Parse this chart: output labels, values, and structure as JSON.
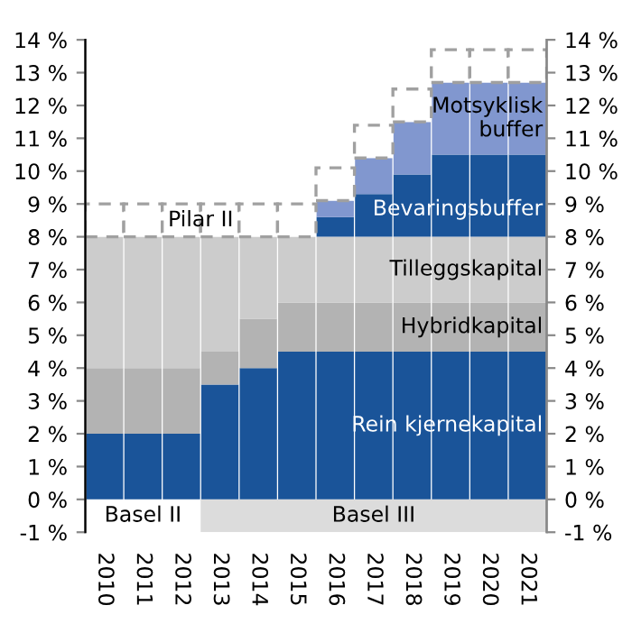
{
  "chart_data": {
    "type": "bar",
    "stacked": true,
    "categories": [
      "2010",
      "2011",
      "2012",
      "2013",
      "2014",
      "2015",
      "2016",
      "2017",
      "2018",
      "2019",
      "2020",
      "2021"
    ],
    "series": [
      {
        "name": "Rein kjernekapital",
        "color": "#1a5499",
        "values": [
          2,
          2,
          2,
          3.5,
          4,
          4.5,
          4.5,
          4.5,
          4.5,
          4.5,
          4.5,
          4.5
        ]
      },
      {
        "name": "Hybridkapital",
        "color": "#b3b3b3",
        "values": [
          2,
          2,
          2,
          1,
          1.5,
          1.5,
          1.5,
          1.5,
          1.5,
          1.5,
          1.5,
          1.5
        ]
      },
      {
        "name": "Tilleggskapital",
        "color": "#cccccc",
        "values": [
          4,
          4,
          4,
          3.5,
          2.5,
          2,
          2,
          2,
          2,
          2,
          2,
          2
        ]
      },
      {
        "name": "Bevaringsbuffer",
        "color": "#1a5499",
        "values": [
          0,
          0,
          0,
          0,
          0,
          0,
          0.6,
          1.3,
          1.9,
          2.5,
          2.5,
          2.5
        ]
      },
      {
        "name": "Motsyklisk\nbuffer",
        "color": "#8197cf",
        "values": [
          0,
          0,
          0,
          0,
          0,
          0,
          0.5,
          1.1,
          1.6,
          2.2,
          2.2,
          2.2
        ]
      },
      {
        "name": "Pilar II",
        "color": "#ffffff",
        "line_style": "dashed",
        "values": [
          1,
          1,
          1,
          1,
          1,
          1,
          1,
          1,
          1,
          1,
          1,
          1
        ]
      }
    ],
    "ylim": [
      -1,
      14
    ],
    "yticks": [
      {
        "value": -1,
        "label": "-1 %"
      },
      {
        "value": 0,
        "label": "0 %"
      },
      {
        "value": 1,
        "label": "1 %"
      },
      {
        "value": 2,
        "label": "2 %"
      },
      {
        "value": 3,
        "label": "3 %"
      },
      {
        "value": 4,
        "label": "4 %"
      },
      {
        "value": 5,
        "label": "5 %"
      },
      {
        "value": 6,
        "label": "6 %"
      },
      {
        "value": 7,
        "label": "7 %"
      },
      {
        "value": 8,
        "label": "8 %"
      },
      {
        "value": 9,
        "label": "9 %"
      },
      {
        "value": 10,
        "label": "10 %"
      },
      {
        "value": 11,
        "label": "11 %"
      },
      {
        "value": 12,
        "label": "12 %"
      },
      {
        "value": 13,
        "label": "13 %"
      },
      {
        "value": 14,
        "label": "14 %"
      }
    ],
    "y2lim": [
      -1,
      14
    ],
    "y2ticks": [
      {
        "value": -1,
        "label": "-1 %"
      },
      {
        "value": 0,
        "label": "0 %"
      },
      {
        "value": 1,
        "label": "1 %"
      },
      {
        "value": 2,
        "label": "2 %"
      },
      {
        "value": 3,
        "label": "3 %"
      },
      {
        "value": 4,
        "label": "4 %"
      },
      {
        "value": 5,
        "label": "5 %"
      },
      {
        "value": 6,
        "label": "6 %"
      },
      {
        "value": 7,
        "label": "7 %"
      },
      {
        "value": 8,
        "label": "8 %"
      },
      {
        "value": 9,
        "label": "9 %"
      },
      {
        "value": 10,
        "label": "10 %"
      },
      {
        "value": 11,
        "label": "11 %"
      },
      {
        "value": 12,
        "label": "12 %"
      },
      {
        "value": 13,
        "label": "13 %"
      },
      {
        "value": 14,
        "label": "14 %"
      }
    ],
    "annotations": [
      "Basel II",
      "Basel III"
    ],
    "grid": false,
    "legend": false
  }
}
